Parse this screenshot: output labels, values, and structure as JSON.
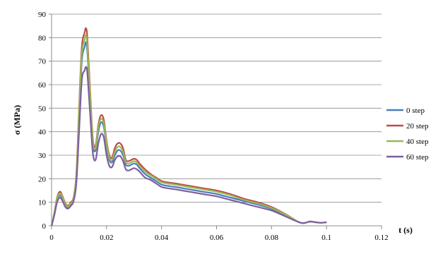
{
  "chart_data": {
    "type": "line",
    "xlabel": "t (s)",
    "ylabel": "σ (MPa)",
    "xlim": [
      0,
      0.12
    ],
    "ylim": [
      0,
      90
    ],
    "x_ticks": [
      "0",
      "0.02",
      "0.04",
      "0.06",
      "0.08",
      "0.1",
      "0.12"
    ],
    "y_ticks": [
      "0",
      "10",
      "20",
      "30",
      "40",
      "50",
      "60",
      "70",
      "80",
      "90"
    ],
    "grid": "horizontal",
    "legend_position": "right",
    "x": [
      0,
      0.001,
      0.002,
      0.003,
      0.004,
      0.005,
      0.006,
      0.007,
      0.008,
      0.009,
      0.01,
      0.011,
      0.012,
      0.0125,
      0.013,
      0.014,
      0.015,
      0.016,
      0.017,
      0.018,
      0.019,
      0.02,
      0.021,
      0.022,
      0.023,
      0.024,
      0.025,
      0.026,
      0.027,
      0.028,
      0.029,
      0.03,
      0.031,
      0.032,
      0.034,
      0.036,
      0.038,
      0.04,
      0.042,
      0.045,
      0.05,
      0.055,
      0.06,
      0.065,
      0.07,
      0.075,
      0.08,
      0.085,
      0.09,
      0.092,
      0.094,
      0.096,
      0.098,
      0.1
    ],
    "series": [
      {
        "name": "0 step",
        "color": "#4a7ebb",
        "values": [
          0,
          5,
          11,
          13,
          11,
          8.5,
          7.8,
          9,
          11,
          20,
          45,
          70,
          76,
          78,
          74,
          55,
          35,
          32,
          40,
          44,
          42,
          34,
          28,
          27,
          30,
          32,
          32,
          30,
          26,
          25.5,
          26,
          26.5,
          26,
          24.5,
          22,
          20.5,
          19,
          17.5,
          17,
          16.5,
          15.5,
          14.5,
          13.5,
          12,
          10.5,
          9,
          7.2,
          4.5,
          1.5,
          1.2,
          1.8,
          1.5,
          1.3,
          1.5
        ]
      },
      {
        "name": "20 step",
        "color": "#be4b48",
        "values": [
          0,
          5.5,
          12,
          14.5,
          12.5,
          9.5,
          8.5,
          10,
          12,
          22,
          50,
          76,
          82,
          84,
          80,
          58,
          37,
          34,
          43,
          47,
          45,
          36,
          30,
          29,
          33,
          35,
          35,
          33,
          28,
          27.5,
          28,
          28.5,
          28,
          26.5,
          24,
          22,
          20.5,
          19,
          18.5,
          18,
          17,
          16,
          15,
          13.5,
          11.5,
          10,
          8,
          5,
          1.5,
          1.2,
          1.8,
          1.5,
          1.3,
          1.5
        ]
      },
      {
        "name": "40 step",
        "color": "#98b954",
        "values": [
          0,
          5.3,
          11.5,
          13.8,
          12,
          9,
          8.1,
          9.5,
          11.5,
          21,
          48,
          73,
          79,
          81,
          77,
          56,
          36,
          33,
          42,
          45.5,
          43.5,
          35,
          29,
          28,
          31.5,
          33.5,
          33.5,
          31.5,
          27,
          26.5,
          27,
          27.5,
          27,
          25.5,
          23,
          21.5,
          20,
          18.5,
          18,
          17.5,
          16.5,
          15.5,
          14.5,
          13,
          11,
          9.5,
          7.6,
          4.8,
          1.5,
          1.2,
          1.8,
          1.5,
          1.3,
          1.5
        ]
      },
      {
        "name": "60 step",
        "color": "#7d5fa0",
        "values": [
          0,
          4.5,
          10,
          12,
          10.5,
          8,
          7.3,
          8.5,
          10.5,
          18,
          40,
          62,
          66,
          67.5,
          65,
          48,
          31,
          28,
          35,
          39,
          37.5,
          30,
          25.5,
          25,
          28,
          29.5,
          29.5,
          27.5,
          24,
          23.5,
          24,
          24.5,
          24,
          23,
          20.5,
          19.5,
          18,
          16.5,
          16,
          15.5,
          14.5,
          13.5,
          12.5,
          11,
          9.5,
          8,
          6.5,
          4,
          1.5,
          1.2,
          1.8,
          1.5,
          1.3,
          1.5
        ]
      }
    ]
  }
}
